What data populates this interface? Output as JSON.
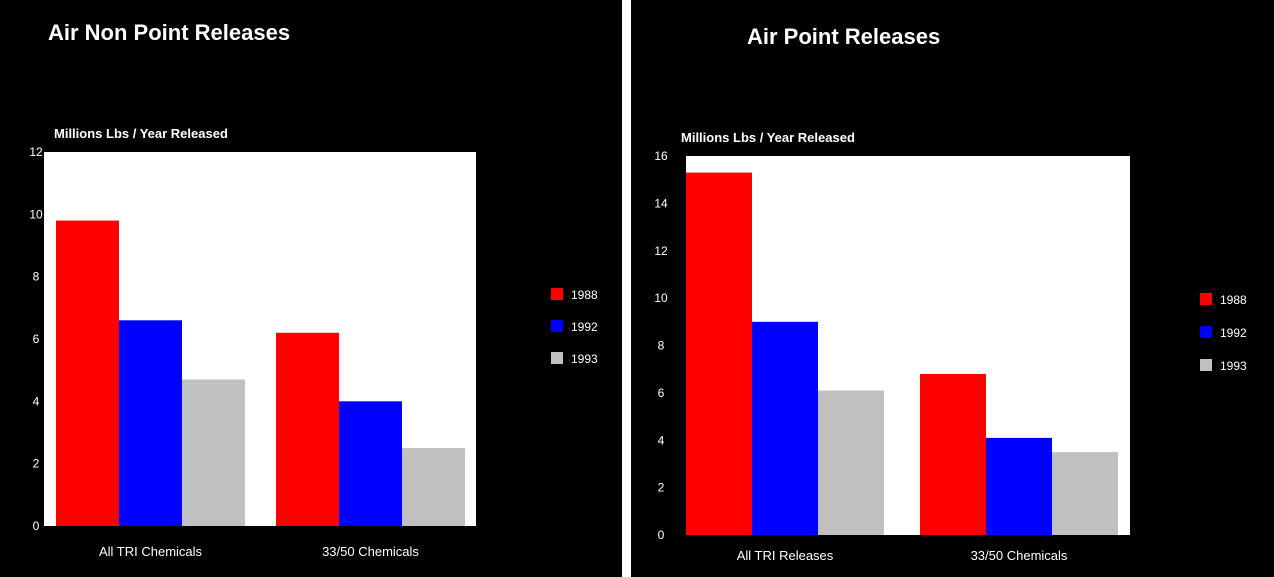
{
  "chart_data": [
    {
      "type": "bar",
      "title": "Air Non Point Releases",
      "ylabel": "Millions Lbs / Year Released",
      "xlabel": "",
      "categories": [
        "All TRI Chemicals",
        "33/50 Chemicals"
      ],
      "series": [
        {
          "name": "1988",
          "color": "#ff0000",
          "values": [
            9.8,
            6.2
          ]
        },
        {
          "name": "1992",
          "color": "#0000ff",
          "values": [
            6.6,
            4.0
          ]
        },
        {
          "name": "1993",
          "color": "#c0c0c0",
          "values": [
            4.7,
            2.5
          ]
        }
      ],
      "ylim": [
        0,
        12
      ],
      "yticks": [
        "0",
        "2",
        "4",
        "6",
        "8",
        "10",
        "12"
      ],
      "grid": false,
      "legend": "right"
    },
    {
      "type": "bar",
      "title": "Air Point Releases",
      "ylabel": "Millions Lbs / Year Released",
      "xlabel": "",
      "categories": [
        "All TRI Releases",
        "33/50 Chemicals"
      ],
      "series": [
        {
          "name": "1988",
          "color": "#ff0000",
          "values": [
            15.3,
            6.8
          ]
        },
        {
          "name": "1992",
          "color": "#0000ff",
          "values": [
            9.0,
            4.1
          ]
        },
        {
          "name": "1993",
          "color": "#c0c0c0",
          "values": [
            6.1,
            3.5
          ]
        }
      ],
      "ylim": [
        0,
        16
      ],
      "yticks": [
        "0",
        "2",
        "4",
        "6",
        "8",
        "10",
        "12",
        "14",
        "16"
      ],
      "grid": false,
      "legend": "right"
    }
  ]
}
